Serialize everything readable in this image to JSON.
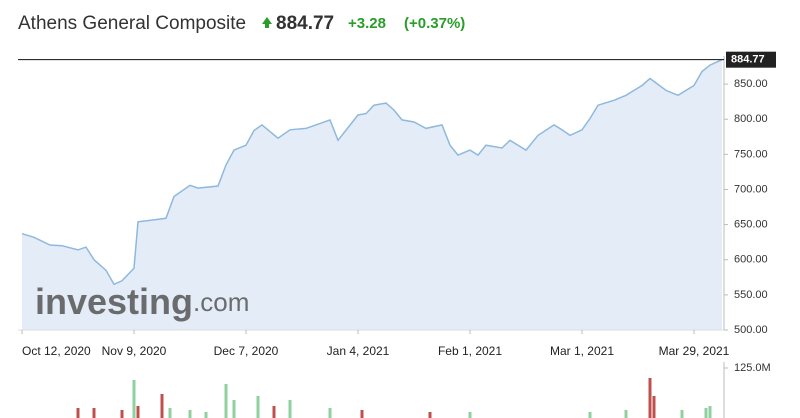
{
  "chart_data": [
    {
      "type": "area",
      "title": "Athens General Composite",
      "last": 884.77,
      "change": "+3.28",
      "change_pct": "(+0.37%)",
      "watermark": "investing",
      "watermark_suffix": ".com",
      "line_color": "#8fb8de",
      "fill_color": "#e4edf7",
      "x": [
        "2020-10-12",
        "2020-10-15",
        "2020-10-19",
        "2020-10-22",
        "2020-10-26",
        "2020-10-28",
        "2020-10-30",
        "2020-11-02",
        "2020-11-04",
        "2020-11-06",
        "2020-11-09",
        "2020-11-10",
        "2020-11-13",
        "2020-11-17",
        "2020-11-19",
        "2020-11-23",
        "2020-11-25",
        "2020-11-30",
        "2020-12-02",
        "2020-12-04",
        "2020-12-07",
        "2020-12-09",
        "2020-12-11",
        "2020-12-15",
        "2020-12-18",
        "2020-12-22",
        "2020-12-28",
        "2020-12-30",
        "2021-01-04",
        "2021-01-06",
        "2021-01-08",
        "2021-01-11",
        "2021-01-13",
        "2021-01-15",
        "2021-01-18",
        "2021-01-21",
        "2021-01-25",
        "2021-01-27",
        "2021-01-29",
        "2021-02-01",
        "2021-02-03",
        "2021-02-05",
        "2021-02-09",
        "2021-02-11",
        "2021-02-15",
        "2021-02-18",
        "2021-02-22",
        "2021-02-24",
        "2021-02-26",
        "2021-03-01",
        "2021-03-03",
        "2021-03-05",
        "2021-03-09",
        "2021-03-12",
        "2021-03-16",
        "2021-03-18",
        "2021-03-22",
        "2021-03-25",
        "2021-03-29",
        "2021-03-31",
        "2021-04-02",
        "2021-04-05"
      ],
      "series": [
        {
          "values": [
            637,
            632,
            621,
            620,
            614,
            618,
            600,
            585,
            565,
            570,
            588,
            654,
            656,
            659,
            690,
            706,
            702,
            705,
            735,
            756,
            763,
            784,
            792,
            773,
            785,
            787,
            799,
            770,
            806,
            808,
            820,
            823,
            813,
            799,
            796,
            787,
            792,
            763,
            749,
            756,
            749,
            763,
            759,
            770,
            756,
            777,
            792,
            785,
            777,
            785,
            801,
            820,
            827,
            834,
            848,
            858,
            841,
            834,
            848,
            868,
            877,
            884.77
          ]
        }
      ],
      "xlim": [
        "2020-10-12",
        "2021-04-05"
      ],
      "xticks": [
        {
          "value": "2020-10-12",
          "label": "Oct 12, 2020"
        },
        {
          "value": "2020-11-09",
          "label": "Nov 9, 2020"
        },
        {
          "value": "2020-12-07",
          "label": "Dec 7, 2020"
        },
        {
          "value": "2021-01-04",
          "label": "Jan 4, 2021"
        },
        {
          "value": "2021-02-01",
          "label": "Feb 1, 2021"
        },
        {
          "value": "2021-03-01",
          "label": "Mar 1, 2021"
        },
        {
          "value": "2021-03-29",
          "label": "Mar 29, 2021"
        }
      ],
      "ylim": [
        500,
        890
      ],
      "yticks": [
        {
          "value": 500,
          "label": "500.00"
        },
        {
          "value": 550,
          "label": "550.00"
        },
        {
          "value": 600,
          "label": "600.00"
        },
        {
          "value": 650,
          "label": "650.00"
        },
        {
          "value": 700,
          "label": "700.00"
        },
        {
          "value": 750,
          "label": "750.00"
        },
        {
          "value": 800,
          "label": "800.00"
        },
        {
          "value": 850,
          "label": "850.00"
        }
      ]
    },
    {
      "type": "bar",
      "x": [
        "2020-10-26",
        "2020-10-30",
        "2020-11-06",
        "2020-11-09",
        "2020-11-10",
        "2020-11-16",
        "2020-11-18",
        "2020-11-23",
        "2020-11-27",
        "2020-12-02",
        "2020-12-04",
        "2020-12-10",
        "2020-12-14",
        "2020-12-18",
        "2020-12-28",
        "2021-01-05",
        "2021-01-22",
        "2021-02-01",
        "2021-03-03",
        "2021-03-12",
        "2021-03-18",
        "2021-03-19",
        "2021-03-26",
        "2021-04-01",
        "2021-04-02"
      ],
      "values": [
        25000000,
        25000000,
        20000000,
        95000000,
        30000000,
        60000000,
        25000000,
        20000000,
        15000000,
        85000000,
        45000000,
        55000000,
        30000000,
        45000000,
        25000000,
        20000000,
        15000000,
        15000000,
        15000000,
        20000000,
        100000000,
        55000000,
        20000000,
        25000000,
        30000000
      ],
      "colors": [
        "#c0504d",
        "#c0504d",
        "#c0504d",
        "#8fd19e",
        "#c0504d",
        "#c0504d",
        "#8fd19e",
        "#8fd19e",
        "#8fd19e",
        "#8fd19e",
        "#8fd19e",
        "#8fd19e",
        "#c0504d",
        "#8fd19e",
        "#8fd19e",
        "#c0504d",
        "#c0504d",
        "#8fd19e",
        "#8fd19e",
        "#8fd19e",
        "#c0504d",
        "#c0504d",
        "#8fd19e",
        "#8fd19e",
        "#8fd19e"
      ],
      "xlim": [
        "2020-10-12",
        "2021-04-05"
      ],
      "ylim": [
        0,
        125000000
      ],
      "yticks": [
        {
          "value": 125000000,
          "label": "125.0M"
        }
      ]
    }
  ]
}
